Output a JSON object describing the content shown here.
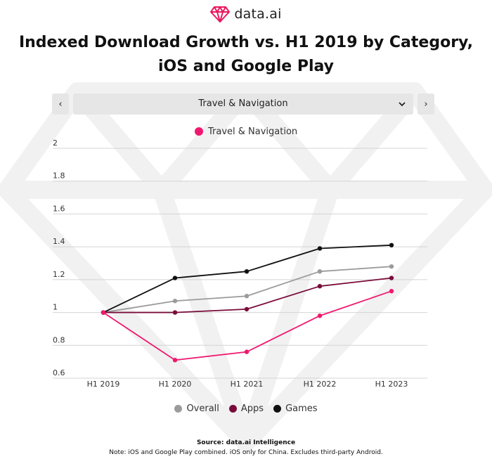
{
  "brand": {
    "name": "data.ai"
  },
  "title_line1": "Indexed Download Growth vs. H1 2019 by Category,",
  "title_line2": "iOS and Google Play",
  "selector": {
    "prev_label": "‹",
    "next_label": "›",
    "selected": "Travel & Navigation",
    "caret": "⌄"
  },
  "source": "Source: data.ai Intelligence",
  "note": "Note: iOS and Google Play combined. iOS only for China. Excludes third-party Android.",
  "colors": {
    "travel": "#f0186e",
    "overall": "#9b9b9b",
    "apps": "#7a0c3a",
    "games": "#111111",
    "grid": "#d4d4d4",
    "watermark": "#f1f1f1"
  },
  "chart_data": {
    "type": "line",
    "categories": [
      "H1 2019",
      "H1 2020",
      "H1 2021",
      "H1 2022",
      "H1 2023"
    ],
    "y_ticks": [
      "2",
      "1.8",
      "1.6",
      "1.4",
      "1.2",
      "1",
      "0.8",
      "0.6"
    ],
    "ylim": [
      0.6,
      2.0
    ],
    "grid": true,
    "legend_top": "Travel & Navigation",
    "legend_bottom": [
      "Overall",
      "Apps",
      "Games"
    ],
    "series": [
      {
        "name": "Overall",
        "key": "overall",
        "values": [
          1.0,
          1.07,
          1.1,
          1.25,
          1.28
        ]
      },
      {
        "name": "Apps",
        "key": "apps",
        "values": [
          1.0,
          1.0,
          1.02,
          1.16,
          1.21
        ]
      },
      {
        "name": "Games",
        "key": "games",
        "values": [
          1.0,
          1.21,
          1.25,
          1.39,
          1.41
        ]
      },
      {
        "name": "Travel & Navigation",
        "key": "travel",
        "values": [
          1.0,
          0.71,
          0.76,
          0.98,
          1.13
        ]
      }
    ]
  }
}
